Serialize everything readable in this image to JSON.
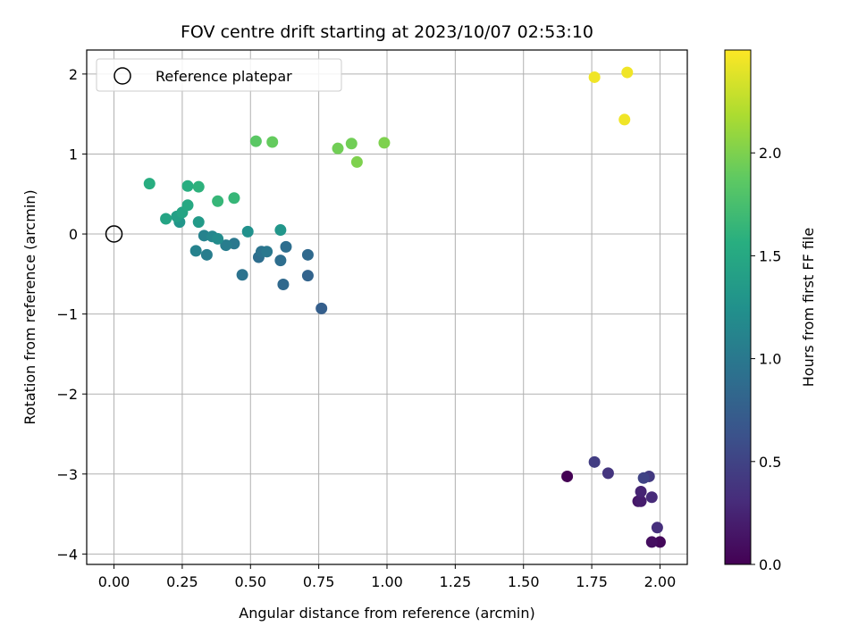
{
  "chart_data": {
    "type": "scatter",
    "title": "FOV centre drift starting at 2023/10/07 02:53:10",
    "xlabel": "Angular distance from reference (arcmin)",
    "ylabel": "Rotation from reference (arcmin)",
    "xlim": [
      -0.1,
      2.1
    ],
    "ylim": [
      -4.13,
      2.3
    ],
    "xticks": [
      0.0,
      0.25,
      0.5,
      0.75,
      1.0,
      1.25,
      1.5,
      1.75,
      2.0
    ],
    "xtick_labels": [
      "0.00",
      "0.25",
      "0.50",
      "0.75",
      "1.00",
      "1.25",
      "1.50",
      "1.75",
      "2.00"
    ],
    "yticks": [
      -4,
      -3,
      -2,
      -1,
      0,
      1,
      2
    ],
    "ytick_labels": [
      "−4",
      "−3",
      "−2",
      "−1",
      "0",
      "1",
      "2"
    ],
    "grid": true,
    "legend": {
      "placement": "top-left",
      "entries": [
        "Reference platepar"
      ]
    },
    "reference_point": {
      "x": 0.0,
      "y": 0.0,
      "marker": "open-circle",
      "color": "#000000"
    },
    "colorbar": {
      "label": "Hours from first FF file",
      "range": [
        0.0,
        2.5
      ],
      "ticks": [
        0.0,
        0.5,
        1.0,
        1.5,
        2.0
      ],
      "tick_labels": [
        "0.0",
        "0.5",
        "1.0",
        "1.5",
        "2.0"
      ],
      "colormap": "viridis"
    },
    "points": [
      {
        "x": 1.66,
        "y": -3.03,
        "hours": 0.0
      },
      {
        "x": 2.0,
        "y": -3.85,
        "hours": 0.05
      },
      {
        "x": 1.97,
        "y": -3.85,
        "hours": 0.1
      },
      {
        "x": 1.92,
        "y": -3.34,
        "hours": 0.15
      },
      {
        "x": 1.93,
        "y": -3.34,
        "hours": 0.2
      },
      {
        "x": 1.93,
        "y": -3.22,
        "hours": 0.25
      },
      {
        "x": 1.97,
        "y": -3.29,
        "hours": 0.3
      },
      {
        "x": 1.99,
        "y": -3.67,
        "hours": 0.33
      },
      {
        "x": 1.81,
        "y": -2.99,
        "hours": 0.38
      },
      {
        "x": 1.96,
        "y": -3.03,
        "hours": 0.42
      },
      {
        "x": 1.76,
        "y": -2.85,
        "hours": 0.45
      },
      {
        "x": 1.94,
        "y": -3.05,
        "hours": 0.5
      },
      {
        "x": 0.76,
        "y": -0.93,
        "hours": 0.75
      },
      {
        "x": 0.71,
        "y": -0.52,
        "hours": 0.8
      },
      {
        "x": 0.62,
        "y": -0.63,
        "hours": 0.85
      },
      {
        "x": 0.71,
        "y": -0.26,
        "hours": 0.85
      },
      {
        "x": 0.61,
        "y": -0.33,
        "hours": 0.9
      },
      {
        "x": 0.63,
        "y": -0.16,
        "hours": 0.9
      },
      {
        "x": 0.53,
        "y": -0.29,
        "hours": 0.9
      },
      {
        "x": 0.47,
        "y": -0.51,
        "hours": 0.95
      },
      {
        "x": 0.54,
        "y": -0.22,
        "hours": 0.95
      },
      {
        "x": 0.56,
        "y": -0.22,
        "hours": 1.0
      },
      {
        "x": 0.44,
        "y": -0.12,
        "hours": 1.0
      },
      {
        "x": 0.41,
        "y": -0.14,
        "hours": 1.05
      },
      {
        "x": 0.34,
        "y": -0.26,
        "hours": 1.05
      },
      {
        "x": 0.3,
        "y": -0.21,
        "hours": 1.1
      },
      {
        "x": 0.33,
        "y": -0.02,
        "hours": 1.1
      },
      {
        "x": 0.36,
        "y": -0.03,
        "hours": 1.15
      },
      {
        "x": 0.38,
        "y": -0.06,
        "hours": 1.2
      },
      {
        "x": 0.49,
        "y": 0.03,
        "hours": 1.25
      },
      {
        "x": 0.61,
        "y": 0.05,
        "hours": 1.3
      },
      {
        "x": 0.24,
        "y": 0.15,
        "hours": 1.3
      },
      {
        "x": 0.31,
        "y": 0.15,
        "hours": 1.35
      },
      {
        "x": 0.23,
        "y": 0.22,
        "hours": 1.4
      },
      {
        "x": 0.19,
        "y": 0.19,
        "hours": 1.45
      },
      {
        "x": 0.25,
        "y": 0.27,
        "hours": 1.45
      },
      {
        "x": 0.27,
        "y": 0.36,
        "hours": 1.5
      },
      {
        "x": 0.13,
        "y": 0.63,
        "hours": 1.55
      },
      {
        "x": 0.27,
        "y": 0.6,
        "hours": 1.55
      },
      {
        "x": 0.31,
        "y": 0.59,
        "hours": 1.6
      },
      {
        "x": 0.38,
        "y": 0.41,
        "hours": 1.65
      },
      {
        "x": 0.44,
        "y": 0.45,
        "hours": 1.65
      },
      {
        "x": 0.52,
        "y": 1.16,
        "hours": 1.85
      },
      {
        "x": 0.58,
        "y": 1.15,
        "hours": 1.9
      },
      {
        "x": 0.82,
        "y": 1.07,
        "hours": 1.95
      },
      {
        "x": 0.87,
        "y": 1.13,
        "hours": 1.95
      },
      {
        "x": 0.89,
        "y": 0.9,
        "hours": 2.0
      },
      {
        "x": 0.99,
        "y": 1.14,
        "hours": 2.0
      },
      {
        "x": 1.76,
        "y": 1.96,
        "hours": 2.45
      },
      {
        "x": 1.88,
        "y": 2.02,
        "hours": 2.45
      },
      {
        "x": 1.87,
        "y": 1.43,
        "hours": 2.45
      }
    ]
  }
}
